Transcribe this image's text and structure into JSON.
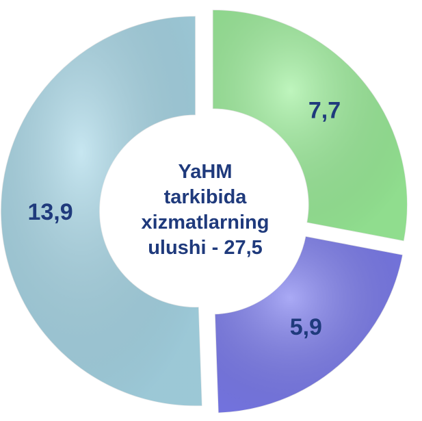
{
  "chart_data": {
    "type": "donut",
    "categories": [
      "",
      "",
      ""
    ],
    "values": [
      7.7,
      5.9,
      13.9
    ],
    "value_labels": [
      "7,7",
      "5,9",
      "13,9"
    ],
    "colors": [
      "#9cf09a",
      "#7c7cf0",
      "#a9d9e9"
    ],
    "center_label": [
      "YaHM",
      "tarkibida",
      "xizmatlarning",
      "ulushi - 27,5"
    ]
  }
}
